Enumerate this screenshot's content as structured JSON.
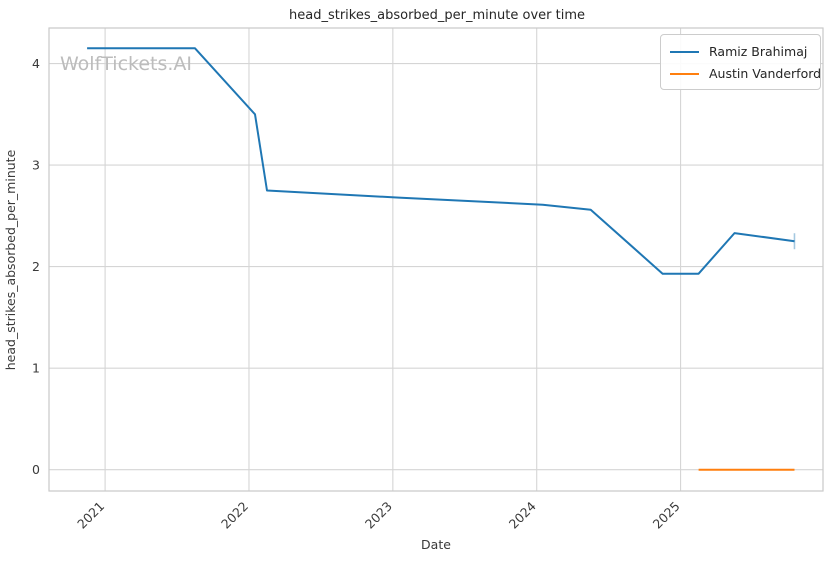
{
  "watermark": "WolfTickets.AI",
  "style": {
    "background": "#ffffff",
    "grid_color": "#d5d5d5",
    "spine_color": "#c9c9c9",
    "text_color": "#262626",
    "watermark_color": "#bcbcbc"
  },
  "legend": {
    "position": "upper right",
    "entries": [
      "Ramiz Brahimaj",
      "Austin Vanderford"
    ]
  },
  "chart_data": {
    "type": "line",
    "title": "head_strikes_absorbed_per_minute over time",
    "xlabel": "Date",
    "ylabel": "head_strikes_absorbed_per_minute",
    "xticks": [
      "2021",
      "2022",
      "2023",
      "2024",
      "2025"
    ],
    "xtick_years": [
      2021,
      2022,
      2023,
      2024,
      2025
    ],
    "yticks": [
      "0",
      "1",
      "2",
      "3",
      "4"
    ],
    "ytick_values": [
      0,
      1,
      2,
      3,
      4
    ],
    "xlim": [
      2020.61,
      2025.99
    ],
    "ylim": [
      -0.21,
      4.35
    ],
    "grid": true,
    "legend_position": "upper right",
    "series": [
      {
        "name": "Ramiz Brahimaj",
        "color": "#1f77b4",
        "end_tick": true,
        "points": [
          {
            "date": "2020-11",
            "value": 4.15
          },
          {
            "date": "2021-08",
            "value": 4.15
          },
          {
            "date": "2022-01",
            "value": 3.5
          },
          {
            "date": "2022-02",
            "value": 2.75
          },
          {
            "date": "2023-01",
            "value": 2.68
          },
          {
            "date": "2024-01",
            "value": 2.61
          },
          {
            "date": "2024-05",
            "value": 2.56
          },
          {
            "date": "2024-11",
            "value": 1.93
          },
          {
            "date": "2025-02",
            "value": 1.93
          },
          {
            "date": "2025-05",
            "value": 2.33
          },
          {
            "date": "2025-10",
            "value": 2.25
          }
        ]
      },
      {
        "name": "Austin Vanderford",
        "color": "#ff7f0e",
        "end_tick": false,
        "points": [
          {
            "date": "2025-02",
            "value": 0.0
          },
          {
            "date": "2025-10",
            "value": 0.0
          }
        ]
      }
    ]
  }
}
